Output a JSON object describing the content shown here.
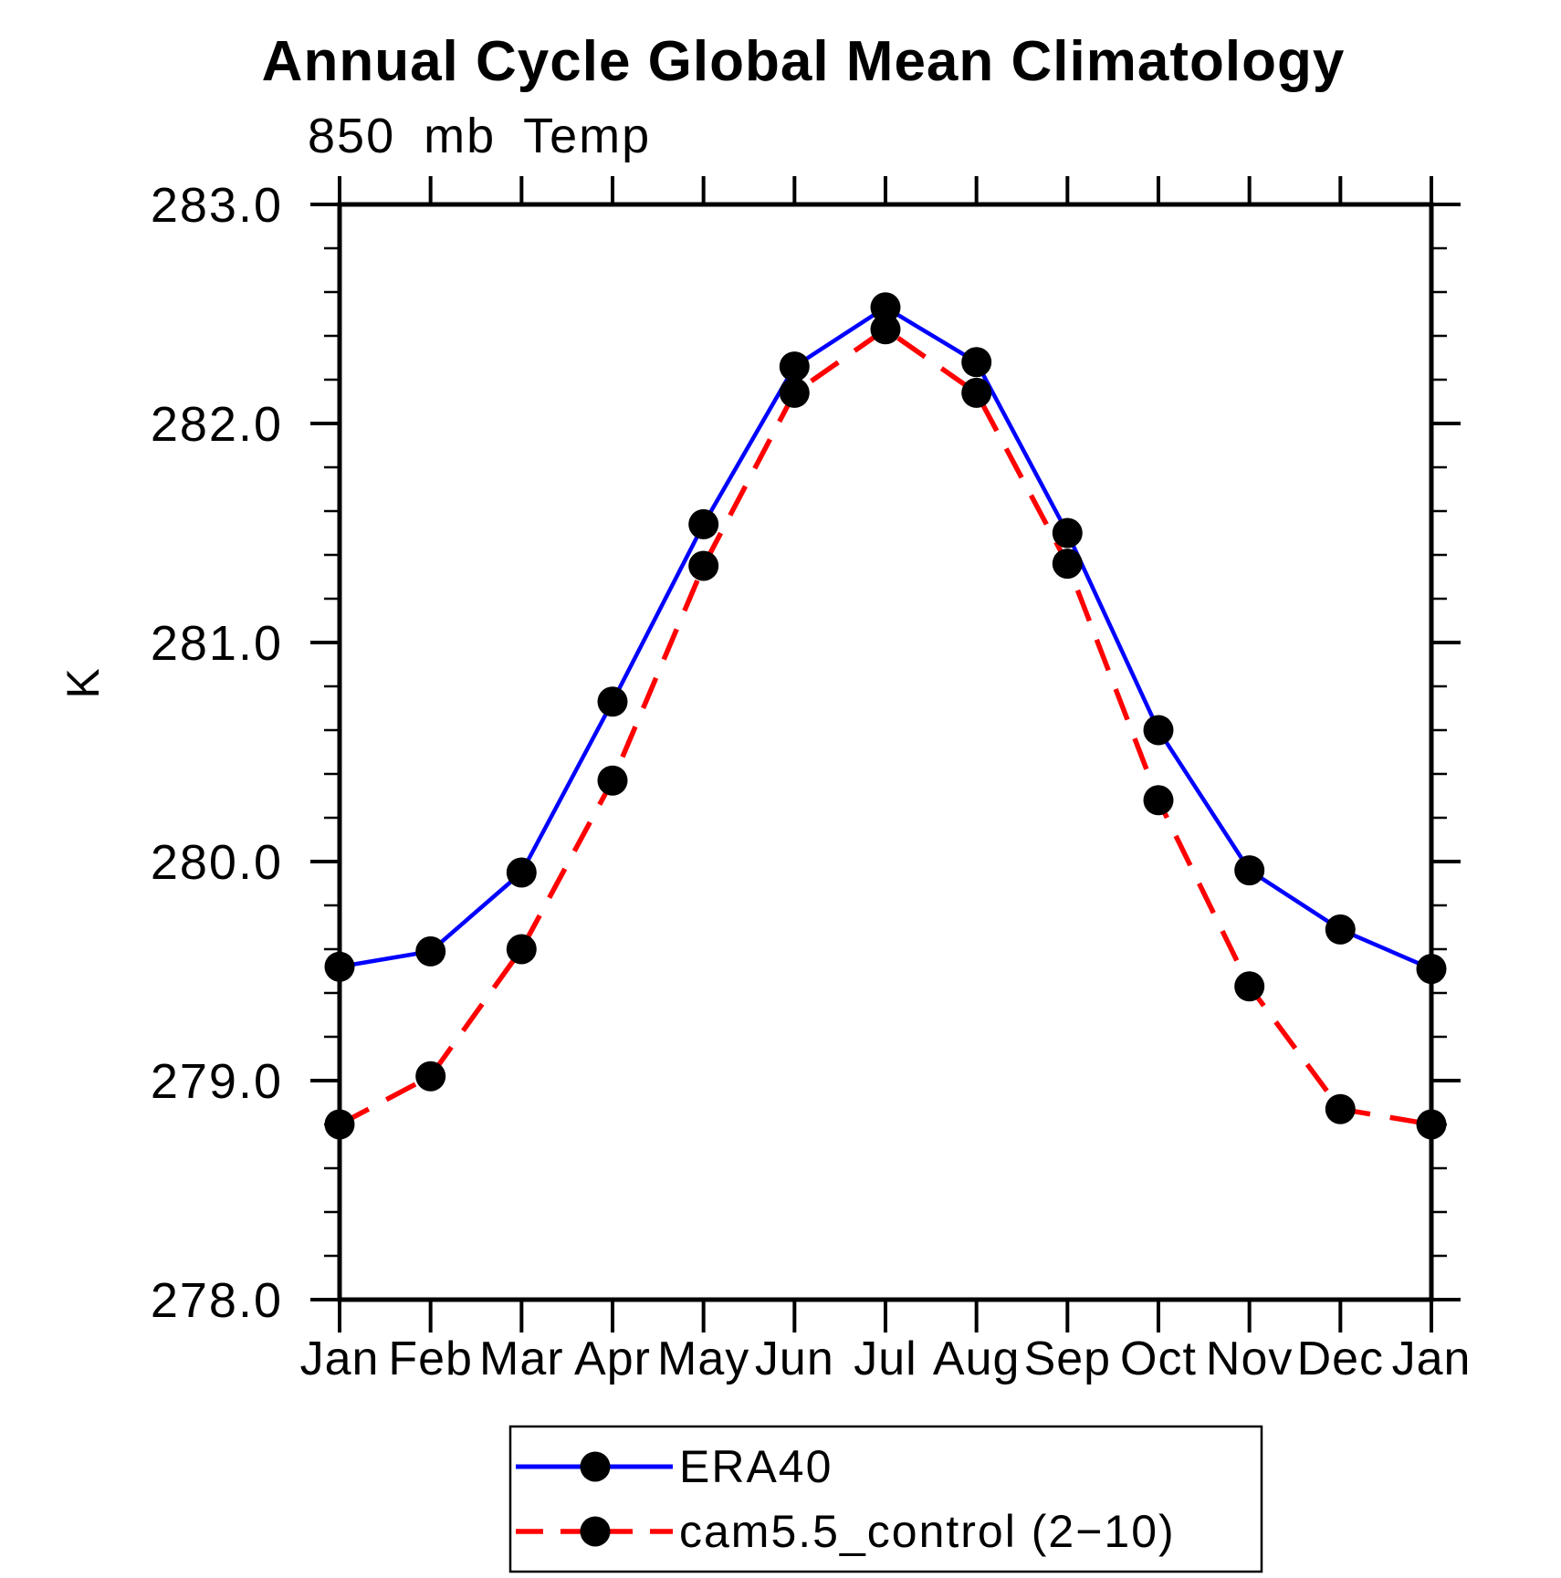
{
  "title": "Annual Cycle Global Mean Climatology",
  "subtitle": "850 mb Temp",
  "y_axis": {
    "label": "K",
    "min": 278.0,
    "max": 283.0,
    "major_tick_step": 1.0,
    "minor_tick_step": 0.2,
    "tick_labels": [
      "283.0",
      "282.0",
      "281.0",
      "280.0",
      "279.0",
      "278.0"
    ]
  },
  "x_axis": {
    "tick_labels": [
      "Jan",
      "Feb",
      "Mar",
      "Apr",
      "May",
      "Jun",
      "Jul",
      "Aug",
      "Sep",
      "Oct",
      "Nov",
      "Dec",
      "Jan"
    ]
  },
  "legend": {
    "entries": [
      {
        "label": "ERA40",
        "color": "#0000ff",
        "line_style": "solid",
        "marker": "filled-circle",
        "marker_color": "#000000"
      },
      {
        "label": "cam5.5_control (2−10)",
        "color": "#ff0000",
        "line_style": "dashed",
        "marker": "filled-circle",
        "marker_color": "#000000"
      }
    ]
  },
  "chart_data": {
    "type": "line",
    "title": "Annual Cycle Global Mean Climatology",
    "subtitle": "850 mb Temp",
    "ylabel": "K",
    "xlabel": "",
    "ylim": [
      278.0,
      283.0
    ],
    "grid": false,
    "legend_position": "bottom",
    "x": [
      "Jan",
      "Feb",
      "Mar",
      "Apr",
      "May",
      "Jun",
      "Jul",
      "Aug",
      "Sep",
      "Oct",
      "Nov",
      "Dec",
      "Jan"
    ],
    "series": [
      {
        "name": "ERA40",
        "color": "#0000ff",
        "line_style": "solid",
        "marker": "circle",
        "marker_color": "#000000",
        "values": [
          279.52,
          279.59,
          279.95,
          280.73,
          281.54,
          282.26,
          282.53,
          282.28,
          281.5,
          280.6,
          279.96,
          279.69,
          279.51
        ]
      },
      {
        "name": "cam5.5_control (2−10)",
        "color": "#ff0000",
        "line_style": "dashed",
        "marker": "circle",
        "marker_color": "#000000",
        "values": [
          278.8,
          279.02,
          279.6,
          280.37,
          281.35,
          282.14,
          282.43,
          282.14,
          281.36,
          280.28,
          279.43,
          278.87,
          278.8
        ]
      }
    ]
  }
}
